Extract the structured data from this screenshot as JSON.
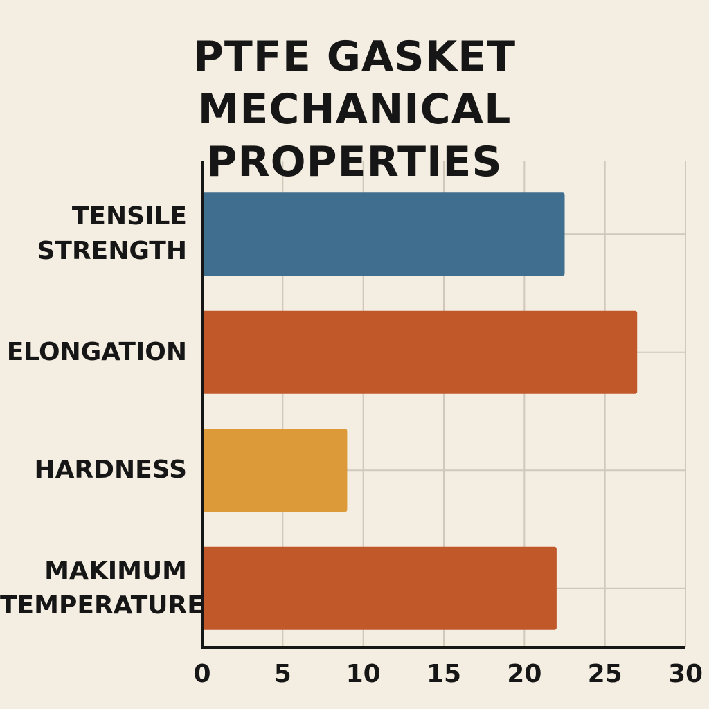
{
  "chart_data": {
    "type": "bar",
    "orientation": "horizontal",
    "title": "PTFE GASKET MECHANICAL PROPERTIES",
    "categories": [
      "TENSILE STRENGTH",
      "ELONGATION",
      "HARDNESS",
      "MAKIMUM TEMPERATURE"
    ],
    "values": [
      22.5,
      27,
      9,
      22
    ],
    "colors": [
      "#3f6e8f",
      "#c0582a",
      "#dc9a38",
      "#c0582a"
    ],
    "xlim": [
      0,
      30
    ],
    "xticks": [
      0,
      5,
      10,
      15,
      20,
      25,
      30
    ],
    "grid": true
  }
}
